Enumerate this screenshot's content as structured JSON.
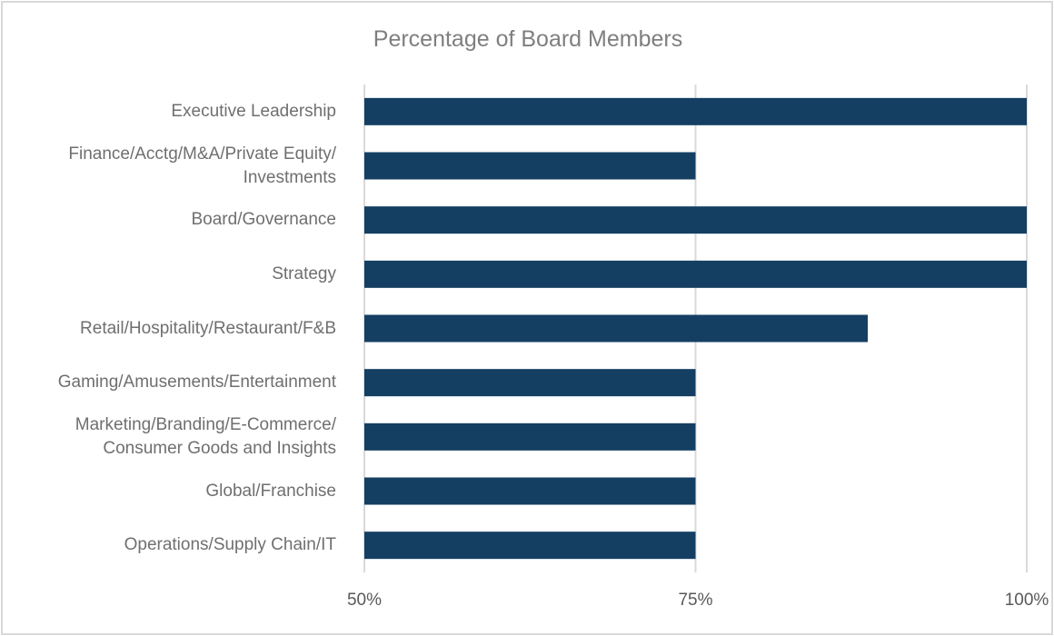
{
  "chart_data": {
    "type": "bar",
    "orientation": "horizontal",
    "title": "Percentage of Board Members",
    "xlabel": "",
    "ylabel": "",
    "xlim": [
      50,
      100
    ],
    "ticks": [
      50,
      75,
      100
    ],
    "tick_labels": [
      "50%",
      "75%",
      "100%"
    ],
    "grid": "vertical gridlines at ticks",
    "legend": "none",
    "bar_color": "#143f63",
    "categories": [
      {
        "lines": [
          "Executive Leadership"
        ],
        "value": 100
      },
      {
        "lines": [
          "Finance/Acctg/M&A/Private Equity/",
          "Investments"
        ],
        "value": 75
      },
      {
        "lines": [
          "Board/Governance"
        ],
        "value": 100
      },
      {
        "lines": [
          "Strategy"
        ],
        "value": 100
      },
      {
        "lines": [
          "Retail/Hospitality/Restaurant/F&B"
        ],
        "value": 88
      },
      {
        "lines": [
          "Gaming/Amusements/Entertainment"
        ],
        "value": 75
      },
      {
        "lines": [
          "Marketing/Branding/E-Commerce/",
          "Consumer Goods and Insights"
        ],
        "value": 75
      },
      {
        "lines": [
          "Global/Franchise"
        ],
        "value": 75
      },
      {
        "lines": [
          "Operations/Supply Chain/IT"
        ],
        "value": 75
      }
    ]
  }
}
